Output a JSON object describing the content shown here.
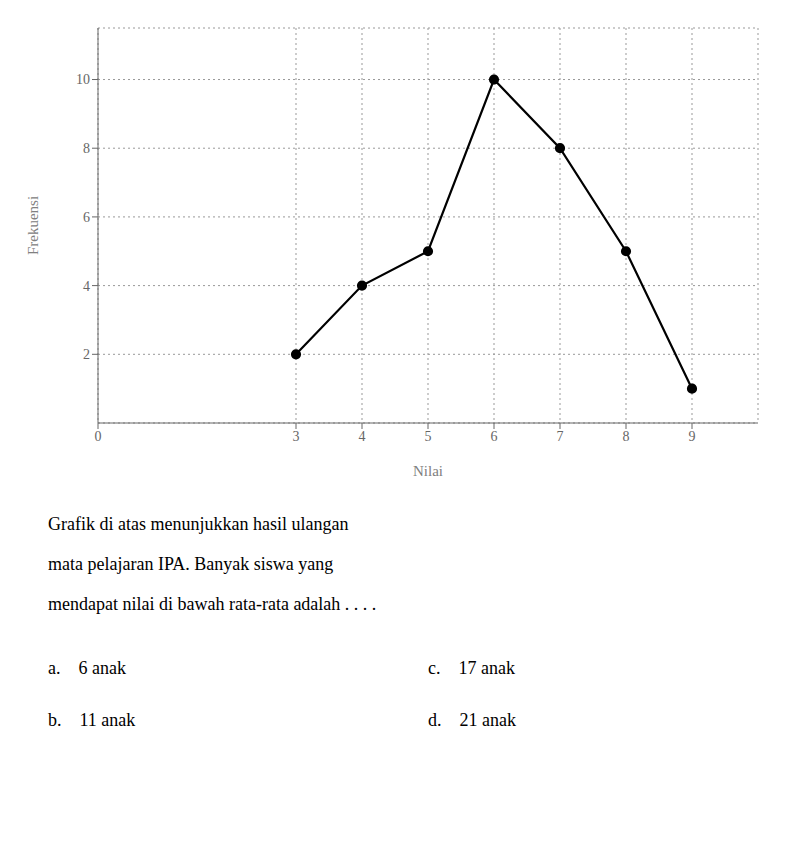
{
  "chart_data": {
    "type": "line",
    "x": [
      3,
      4,
      5,
      6,
      7,
      8,
      9
    ],
    "values": [
      2,
      4,
      5,
      10,
      8,
      5,
      1
    ],
    "x_label": "Nilai",
    "y_label": "Frekuensi",
    "xlim": [
      0,
      10.0
    ],
    "ylim": [
      0,
      11.5
    ],
    "xticks": [
      0,
      3,
      4,
      5,
      6,
      7,
      8,
      9
    ],
    "yticks": [
      2,
      4,
      6,
      8,
      10
    ],
    "color": "#000000",
    "marker": "circle",
    "grid": true,
    "annotations": [
      "Grafik di atas menunjukkan hasil ulangan",
      "mata pelajaran IPA. Banyak siswa yang",
      "mendapat nilai di bawah rata-rata adalah . . . .",
      "a.    6 anak",
      "b.    11 anak",
      "c.    17 anak",
      "d.    21 anak"
    ]
  }
}
